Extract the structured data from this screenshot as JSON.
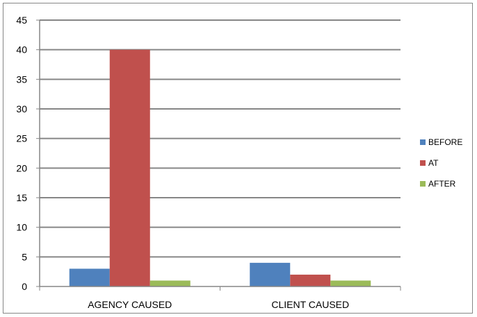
{
  "chart_data": {
    "type": "bar",
    "title": "",
    "xlabel": "",
    "ylabel": "",
    "categories": [
      "AGENCY CAUSED",
      "CLIENT CAUSED"
    ],
    "series": [
      {
        "name": "BEFORE",
        "values": [
          3,
          4
        ],
        "color": "#4F81BD"
      },
      {
        "name": "AT",
        "values": [
          40,
          2
        ],
        "color": "#C0504D"
      },
      {
        "name": "AFTER",
        "values": [
          1,
          1
        ],
        "color": "#9BBB59"
      }
    ],
    "ylim": [
      0,
      45
    ],
    "yticks": [
      "0",
      "5",
      "10",
      "15",
      "20",
      "25",
      "30",
      "35",
      "40",
      "45"
    ],
    "grid": true,
    "legend_position": "right"
  }
}
